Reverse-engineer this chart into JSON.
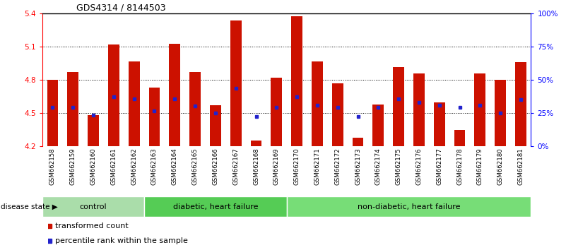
{
  "title": "GDS4314 / 8144503",
  "samples": [
    "GSM662158",
    "GSM662159",
    "GSM662160",
    "GSM662161",
    "GSM662162",
    "GSM662163",
    "GSM662164",
    "GSM662165",
    "GSM662166",
    "GSM662167",
    "GSM662168",
    "GSM662169",
    "GSM662170",
    "GSM662171",
    "GSM662172",
    "GSM662173",
    "GSM662174",
    "GSM662175",
    "GSM662176",
    "GSM662177",
    "GSM662178",
    "GSM662179",
    "GSM662180",
    "GSM662181"
  ],
  "bar_values": [
    4.8,
    4.87,
    4.48,
    5.12,
    4.97,
    4.73,
    5.13,
    4.87,
    4.57,
    5.34,
    4.25,
    4.82,
    5.38,
    4.97,
    4.77,
    4.28,
    4.58,
    4.92,
    4.86,
    4.6,
    4.35,
    4.86,
    4.8,
    4.96
  ],
  "blue_dot_values": [
    4.555,
    4.553,
    4.481,
    4.648,
    4.628,
    4.518,
    4.632,
    4.568,
    4.5,
    4.722,
    4.472,
    4.553,
    4.648,
    4.572,
    4.553,
    4.472,
    4.553,
    4.628,
    4.6,
    4.572,
    4.553,
    4.572,
    4.5,
    4.62
  ],
  "ylim": [
    4.2,
    5.4
  ],
  "ytick_positions": [
    4.2,
    4.5,
    4.8,
    5.1,
    5.4
  ],
  "ytick_labels": [
    "4.2",
    "4.5",
    "4.8",
    "5.1",
    "5.4"
  ],
  "grid_lines": [
    4.5,
    4.8,
    5.1
  ],
  "right_pct_ticks": [
    0,
    25,
    50,
    75,
    100
  ],
  "right_pct_labels": [
    "0%",
    "25%",
    "50%",
    "75%",
    "100%"
  ],
  "bar_color": "#cc1100",
  "dot_color": "#2222cc",
  "bar_base": 4.2,
  "bar_width": 0.55,
  "groups": [
    {
      "label": "control",
      "start": 0,
      "end": 4,
      "color": "#aaddaa"
    },
    {
      "label": "diabetic, heart failure",
      "start": 5,
      "end": 11,
      "color": "#55cc55"
    },
    {
      "label": "non-diabetic, heart failure",
      "start": 12,
      "end": 23,
      "color": "#77dd77"
    }
  ],
  "disease_state_label": "disease state",
  "legend_bar_label": "transformed count",
  "legend_dot_label": "percentile rank within the sample",
  "bg_color_xtick": "#cccccc",
  "title_fontsize": 9,
  "tick_fontsize": 7.5,
  "sample_fontsize": 6.2,
  "group_fontsize": 8
}
